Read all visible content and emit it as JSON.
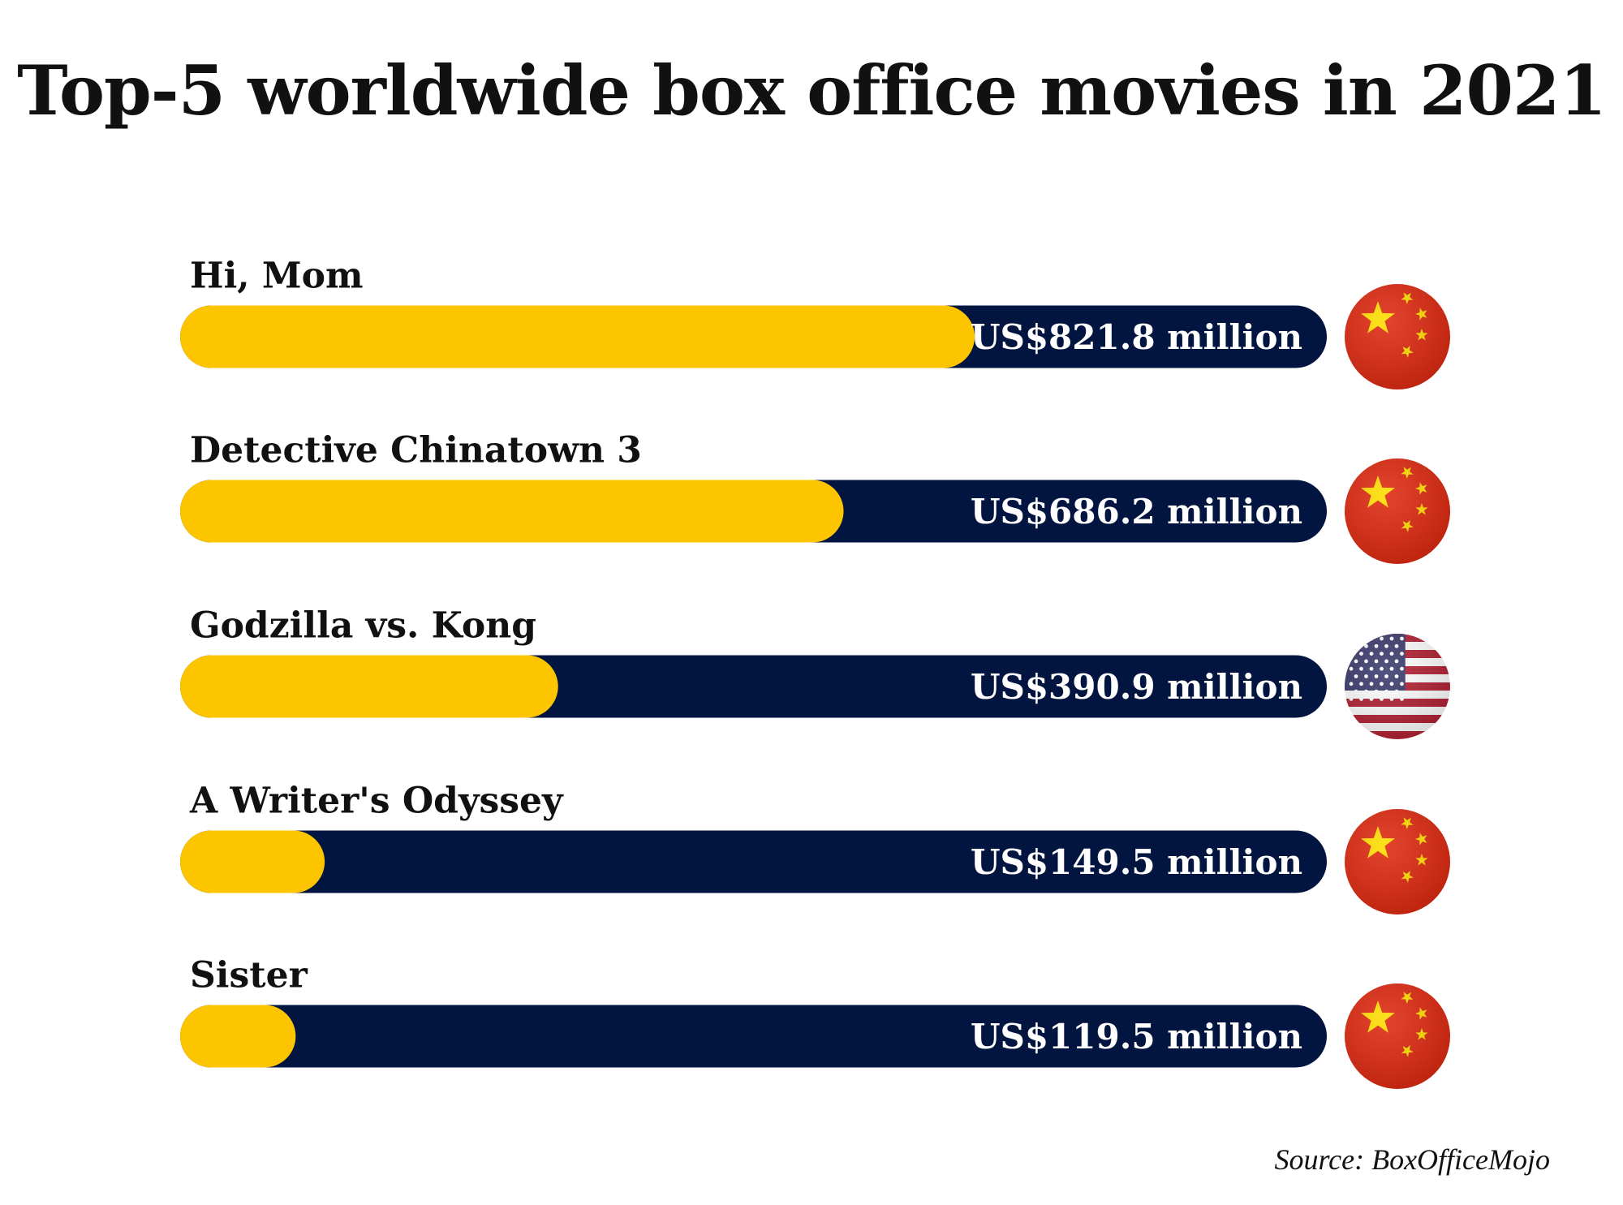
{
  "chart_data": {
    "type": "bar",
    "orientation": "horizontal",
    "title": "Top-5 worldwide box office movies in 2021",
    "categories": [
      "Hi, Mom",
      "Detective Chinatown 3",
      "Godzilla vs. Kong",
      "A Writer's Odyssey",
      "Sister"
    ],
    "values": [
      821.8,
      686.2,
      390.9,
      149.5,
      119.5
    ],
    "value_labels": [
      "US$821.8 million",
      "US$686.2 million",
      "US$390.9 million",
      "US$149.5 million",
      "US$119.5 million"
    ],
    "units": "US$ million",
    "countries": [
      "china",
      "china",
      "usa",
      "china",
      "china"
    ],
    "xlim": [
      0,
      1186
    ],
    "grid": false,
    "source": "Source: BoxOfficeMojo",
    "colors": {
      "fill": "#FDC500",
      "track": "#021440",
      "value_text": "#FFFFFF",
      "china_red": "#DE2910",
      "china_star": "#FFDE00",
      "usa_red": "#B22234",
      "usa_blue": "#3C3B6E"
    }
  }
}
